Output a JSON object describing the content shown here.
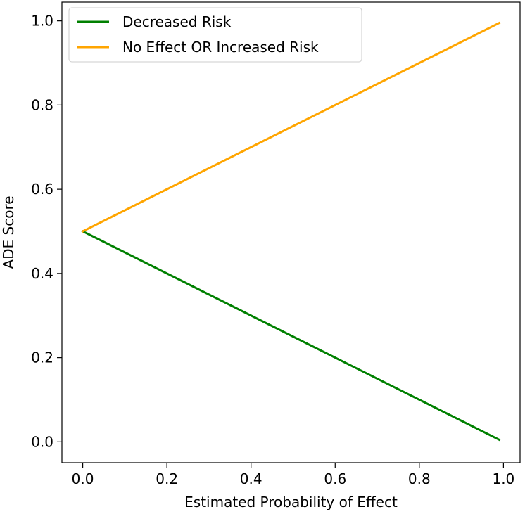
{
  "chart_data": {
    "type": "line",
    "title": "",
    "xlabel": "Estimated Probability of Effect",
    "ylabel": "ADE Score",
    "xlim": [
      -0.0495,
      1.0395
    ],
    "ylim": [
      -0.0495,
      1.0445
    ],
    "xticks": [
      0.0,
      0.2,
      0.4,
      0.6,
      0.8,
      1.0
    ],
    "xtick_labels": [
      "0.0",
      "0.2",
      "0.4",
      "0.6",
      "0.8",
      "1.0"
    ],
    "yticks": [
      0.0,
      0.2,
      0.4,
      0.6,
      0.8,
      1.0
    ],
    "ytick_labels": [
      "0.0",
      "0.2",
      "0.4",
      "0.6",
      "0.8",
      "1.0"
    ],
    "grid": false,
    "legend_position": "upper-left",
    "series": [
      {
        "name": "Decreased Risk",
        "color": "#008000",
        "x": [
          0.0,
          0.99
        ],
        "y": [
          0.5,
          0.005
        ]
      },
      {
        "name": "No Effect OR Increased Risk",
        "color": "#ffa500",
        "x": [
          0.0,
          0.99
        ],
        "y": [
          0.5,
          0.995
        ]
      }
    ]
  }
}
